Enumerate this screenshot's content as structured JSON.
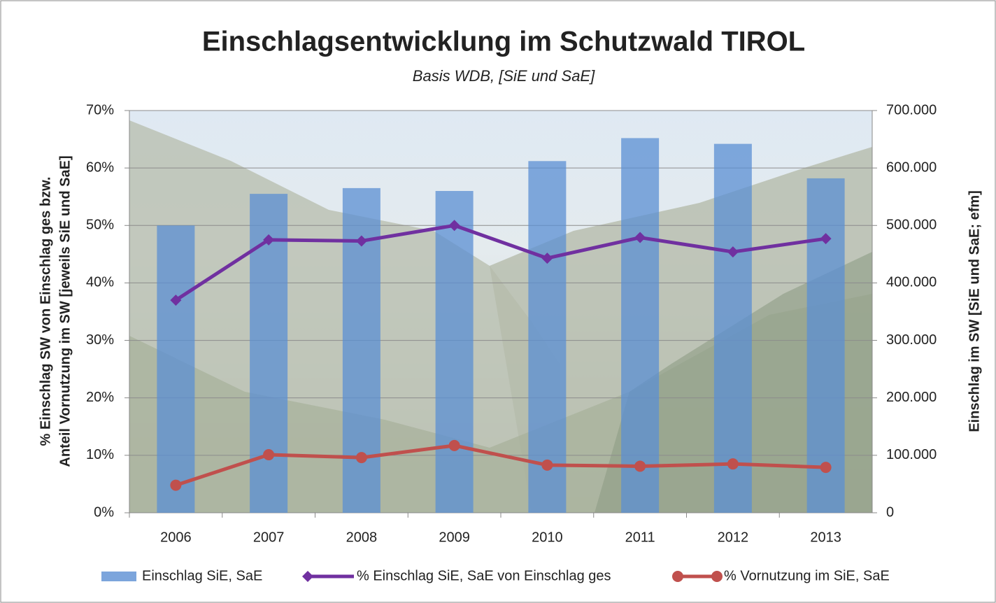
{
  "chart_data": {
    "type": "bar",
    "title": "Einschlagsentwicklung im Schutzwald TIROL",
    "subtitle": "Basis WDB, [SiE und SaE]",
    "y_label": [
      "% Einschlag SW von Einschlag ges bzw.",
      "Anteil Vornutzung im SW [jeweils SiE und SaE]"
    ],
    "y2_label": "Einschlag im SW [SiE und SaE; efm]",
    "categories": [
      "2006",
      "2007",
      "2008",
      "2009",
      "2010",
      "2011",
      "2012",
      "2013"
    ],
    "series": [
      {
        "name": "Einschlag SiE, SaE",
        "type": "bar",
        "axis": "y2",
        "color": "#5b8fd3",
        "values": [
          500000,
          555000,
          565000,
          560000,
          612000,
          652000,
          642000,
          582000
        ]
      },
      {
        "name": "% Einschlag SiE, SaE von Einschlag ges",
        "type": "line",
        "axis": "y",
        "color": "#7030a0",
        "marker": "diamond",
        "values": [
          37,
          47.5,
          47.3,
          50,
          44.3,
          47.9,
          45.4,
          47.7
        ]
      },
      {
        "name": "% Vornutzung im SiE, SaE",
        "type": "line",
        "axis": "y",
        "color": "#c0504d",
        "marker": "circle",
        "values": [
          4.8,
          10.1,
          9.6,
          11.7,
          8.3,
          8.1,
          8.5,
          7.9
        ]
      }
    ],
    "ylim": [
      0,
      70
    ],
    "yticks": [
      {
        "value": 0,
        "label": "0%"
      },
      {
        "value": 10,
        "label": "10%"
      },
      {
        "value": 20,
        "label": "20%"
      },
      {
        "value": 30,
        "label": "30%"
      },
      {
        "value": 40,
        "label": "40%"
      },
      {
        "value": 50,
        "label": "50%"
      },
      {
        "value": 60,
        "label": "60%"
      },
      {
        "value": 70,
        "label": "70%"
      }
    ],
    "y2lim": [
      0,
      700000
    ],
    "y2ticks": [
      0,
      {
        "value": 100000,
        "label": "100.000"
      },
      {
        "value": 200000,
        "label": "200.000"
      },
      {
        "value": 300000,
        "label": "300.000"
      },
      {
        "value": 400000,
        "label": "400.000"
      },
      {
        "value": 500000,
        "label": "500.000"
      },
      {
        "value": 600000,
        "label": "600.000"
      },
      {
        "value": 700000,
        "label": "700.000"
      }
    ],
    "grid": true,
    "legend": "bottom"
  }
}
